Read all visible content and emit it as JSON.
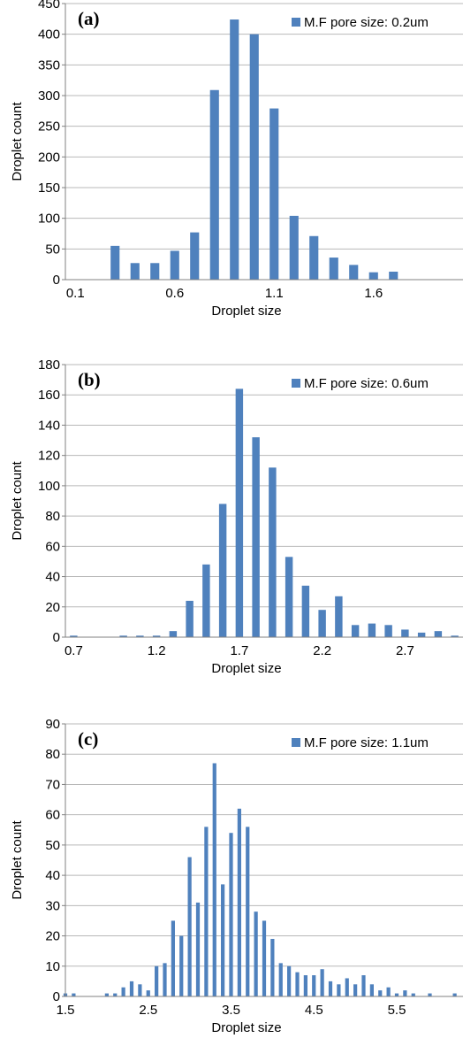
{
  "chart_data": [
    {
      "type": "bar",
      "panel_label": "(a)",
      "legend_label": "M.F pore size: 0.2um",
      "legend_position": "top-right",
      "xlabel": "Droplet size",
      "ylabel": "Droplet count",
      "ylim": [
        0,
        450
      ],
      "yticks": [
        0,
        50,
        100,
        150,
        200,
        250,
        300,
        350,
        400,
        450
      ],
      "xlim": [
        0.05,
        2.05
      ],
      "xticks": [
        0.1,
        0.6,
        1.1,
        1.6
      ],
      "xtick_labels": [
        "0.1",
        "0.6",
        "1.1",
        "1.6"
      ],
      "grid": "horizontal",
      "bar_color": "#4f81bd",
      "series": [
        {
          "name": "M.F pore size: 0.2um",
          "x": [
            0.3,
            0.4,
            0.5,
            0.6,
            0.7,
            0.8,
            0.9,
            1.0,
            1.1,
            1.2,
            1.3,
            1.4,
            1.5,
            1.6,
            1.7
          ],
          "values": [
            55,
            27,
            27,
            47,
            77,
            309,
            424,
            400,
            279,
            104,
            71,
            36,
            24,
            12,
            13
          ]
        }
      ]
    },
    {
      "type": "bar",
      "panel_label": "(b)",
      "legend_label": "M.F pore size: 0.6um",
      "legend_position": "top-right",
      "xlabel": "Droplet size",
      "ylabel": "Droplet count",
      "ylim": [
        0,
        180
      ],
      "yticks": [
        0,
        20,
        40,
        60,
        80,
        100,
        120,
        140,
        160,
        180
      ],
      "xlim": [
        0.65,
        3.05
      ],
      "xticks": [
        0.7,
        1.2,
        1.7,
        2.2,
        2.7
      ],
      "xtick_labels": [
        "0.7",
        "1.2",
        "1.7",
        "2.2",
        "2.7"
      ],
      "grid": "horizontal",
      "bar_color": "#4f81bd",
      "series": [
        {
          "name": "M.F pore size: 0.6um",
          "x": [
            0.7,
            0.8,
            0.9,
            1.0,
            1.1,
            1.2,
            1.3,
            1.4,
            1.5,
            1.6,
            1.7,
            1.8,
            1.9,
            2.0,
            2.1,
            2.2,
            2.3,
            2.4,
            2.5,
            2.6,
            2.7,
            2.8,
            2.9,
            3.0
          ],
          "values": [
            1,
            0,
            0,
            1,
            1,
            1,
            4,
            24,
            48,
            88,
            164,
            132,
            112,
            53,
            34,
            18,
            27,
            8,
            9,
            8,
            5,
            3,
            4,
            1
          ]
        }
      ]
    },
    {
      "type": "bar",
      "panel_label": "(c)",
      "legend_label": "M.F pore size: 1.1um",
      "legend_position": "top-right",
      "xlabel": "Droplet size",
      "ylabel": "Droplet count",
      "ylim": [
        0,
        90
      ],
      "yticks": [
        0,
        10,
        20,
        30,
        40,
        50,
        60,
        70,
        80,
        90
      ],
      "xlim": [
        1.5,
        6.3
      ],
      "xticks": [
        1.5,
        2.5,
        3.5,
        4.5,
        5.5
      ],
      "xtick_labels": [
        "1.5",
        "2.5",
        "3.5",
        "4.5",
        "5.5"
      ],
      "grid": "horizontal",
      "bar_color": "#4f81bd",
      "series": [
        {
          "name": "M.F pore size: 1.1um",
          "x": [
            1.5,
            1.6,
            1.7,
            1.8,
            1.9,
            2.0,
            2.1,
            2.2,
            2.3,
            2.4,
            2.5,
            2.6,
            2.7,
            2.8,
            2.9,
            3.0,
            3.1,
            3.2,
            3.3,
            3.4,
            3.5,
            3.6,
            3.7,
            3.8,
            3.9,
            4.0,
            4.1,
            4.2,
            4.3,
            4.4,
            4.5,
            4.6,
            4.7,
            4.8,
            4.9,
            5.0,
            5.1,
            5.2,
            5.3,
            5.4,
            5.5,
            5.6,
            5.7,
            5.8,
            5.9,
            6.0,
            6.1,
            6.2
          ],
          "values": [
            1,
            1,
            0,
            0,
            0,
            1,
            1,
            3,
            5,
            4,
            2,
            10,
            11,
            25,
            20,
            46,
            31,
            56,
            77,
            37,
            54,
            62,
            56,
            28,
            25,
            19,
            11,
            10,
            8,
            7,
            7,
            9,
            5,
            4,
            6,
            4,
            7,
            4,
            2,
            3,
            1,
            2,
            1,
            0,
            1,
            0,
            0,
            1
          ]
        }
      ]
    }
  ]
}
